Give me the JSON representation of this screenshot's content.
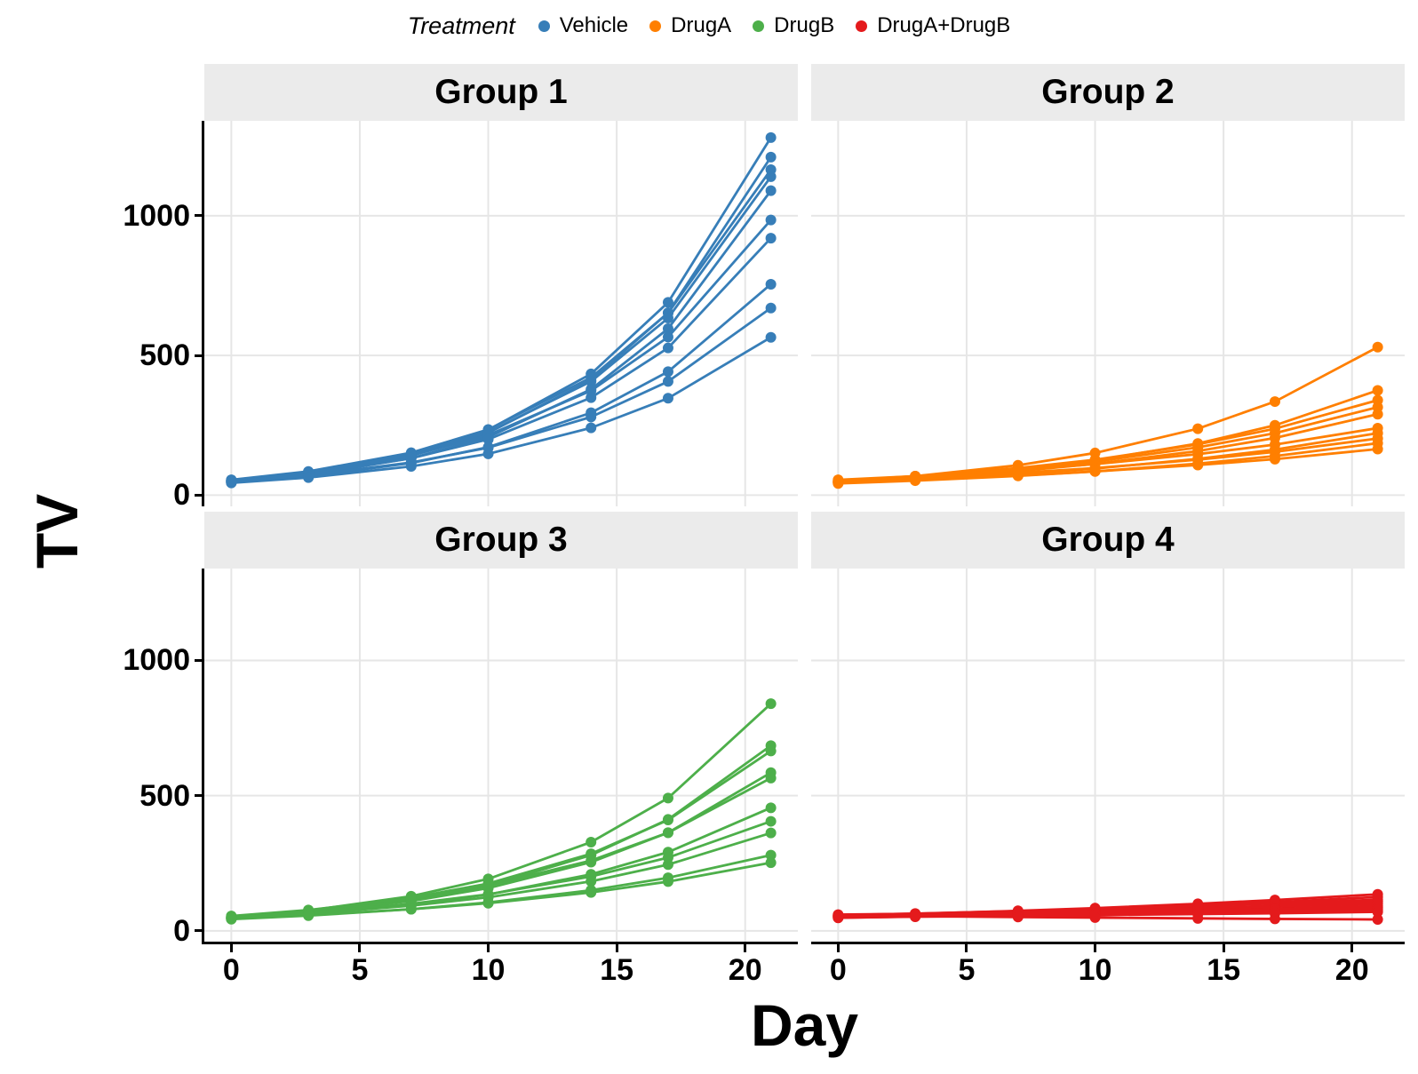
{
  "legend": {
    "title": "Treatment",
    "items": [
      {
        "label": "Vehicle",
        "color": "#377EB8"
      },
      {
        "label": "DrugA",
        "color": "#FF7F00"
      },
      {
        "label": "DrugB",
        "color": "#4DAF4A"
      },
      {
        "label": "DrugA+DrugB",
        "color": "#E41A1C"
      }
    ]
  },
  "axes": {
    "x_title": "Day",
    "y_title": "TV"
  },
  "chart_data": {
    "type": "line",
    "facet_by": "Group",
    "xlabel": "Day",
    "ylabel": "TV",
    "x": [
      0,
      3,
      7,
      10,
      14,
      17,
      21
    ],
    "x_ticks": [
      0,
      5,
      10,
      15,
      20
    ],
    "y_ticks": [
      0,
      500,
      1000
    ],
    "xlim": [
      -1.05,
      22.05
    ],
    "ylim": [
      -40,
      1340
    ],
    "grid": true,
    "legend_position": "top",
    "style": {
      "grid_color": "#E6E6E6",
      "strip_background": "#EBEBEB",
      "panel_background": "#FFFFFF",
      "axis_color": "#000000"
    },
    "facets": [
      {
        "label": "Group 1",
        "treatment": "Vehicle",
        "color": "#377EB8",
        "series": [
          [
            50,
            79,
            147,
            234,
            434,
            690,
            1280
          ],
          [
            48,
            76,
            141,
            223,
            412,
            653,
            1210
          ],
          [
            55,
            85,
            152,
            235,
            421,
            652,
            1165
          ],
          [
            52,
            81,
            146,
            226,
            407,
            634,
            1140
          ],
          [
            46,
            72,
            132,
            208,
            379,
            596,
            1090
          ],
          [
            54,
            82,
            142,
            215,
            374,
            566,
            985
          ],
          [
            50,
            75,
            132,
            200,
            349,
            527,
            920
          ],
          [
            45,
            67,
            115,
            172,
            295,
            442,
            755
          ],
          [
            49,
            71,
            117,
            170,
            280,
            407,
            670
          ],
          [
            44,
            63,
            103,
            148,
            241,
            347,
            565
          ]
        ]
      },
      {
        "label": "Group 2",
        "treatment": "DrugA",
        "color": "#FF7F00",
        "series": [
          [
            48,
            68,
            107,
            151,
            238,
            335,
            530
          ],
          [
            45,
            61,
            91,
            124,
            185,
            250,
            375
          ],
          [
            52,
            68,
            97,
            127,
            182,
            238,
            340
          ],
          [
            50,
            65,
            92,
            120,
            171,
            222,
            315
          ],
          [
            47,
            61,
            86,
            112,
            158,
            205,
            290
          ],
          [
            55,
            68,
            90,
            111,
            147,
            181,
            240
          ],
          [
            44,
            55,
            76,
            95,
            130,
            163,
            222
          ],
          [
            50,
            61,
            80,
            97,
            127,
            155,
            203
          ],
          [
            42,
            52,
            69,
            85,
            113,
            140,
            186
          ],
          [
            46,
            55,
            70,
            85,
            108,
            129,
            165
          ]
        ]
      },
      {
        "label": "Group 3",
        "treatment": "DrugB",
        "color": "#4DAF4A",
        "series": [
          [
            50,
            75,
            128,
            192,
            328,
            491,
            840
          ],
          [
            46,
            68,
            114,
            167,
            280,
            412,
            685
          ],
          [
            52,
            75,
            122,
            175,
            285,
            410,
            665
          ],
          [
            48,
            69,
            110,
            158,
            254,
            363,
            585
          ],
          [
            55,
            77,
            120,
            167,
            260,
            363,
            565
          ],
          [
            44,
            61,
            96,
            134,
            209,
            291,
            455
          ],
          [
            50,
            67,
            100,
            135,
            201,
            271,
            405
          ],
          [
            47,
            63,
            93,
            124,
            183,
            245,
            362
          ],
          [
            43,
            56,
            80,
            105,
            150,
            196,
            280
          ],
          [
            45,
            58,
            80,
            102,
            142,
            182,
            252
          ]
        ]
      },
      {
        "label": "Group 4",
        "treatment": "DrugA+DrugB",
        "color": "#E41A1C",
        "series": [
          [
            55,
            63,
            74,
            84,
            100,
            114,
            135
          ],
          [
            52,
            59,
            70,
            79,
            93,
            106,
            125
          ],
          [
            58,
            64,
            73,
            80,
            92,
            101,
            115
          ],
          [
            50,
            56,
            65,
            72,
            84,
            93,
            108
          ],
          [
            56,
            61,
            68,
            74,
            82,
            89,
            100
          ],
          [
            48,
            53,
            60,
            65,
            74,
            81,
            92
          ],
          [
            60,
            63,
            67,
            71,
            76,
            80,
            85
          ],
          [
            53,
            56,
            60,
            64,
            69,
            72,
            78
          ],
          [
            49,
            52,
            55,
            58,
            62,
            65,
            70
          ],
          [
            56,
            54,
            51,
            49,
            46,
            44,
            42
          ]
        ]
      }
    ]
  }
}
